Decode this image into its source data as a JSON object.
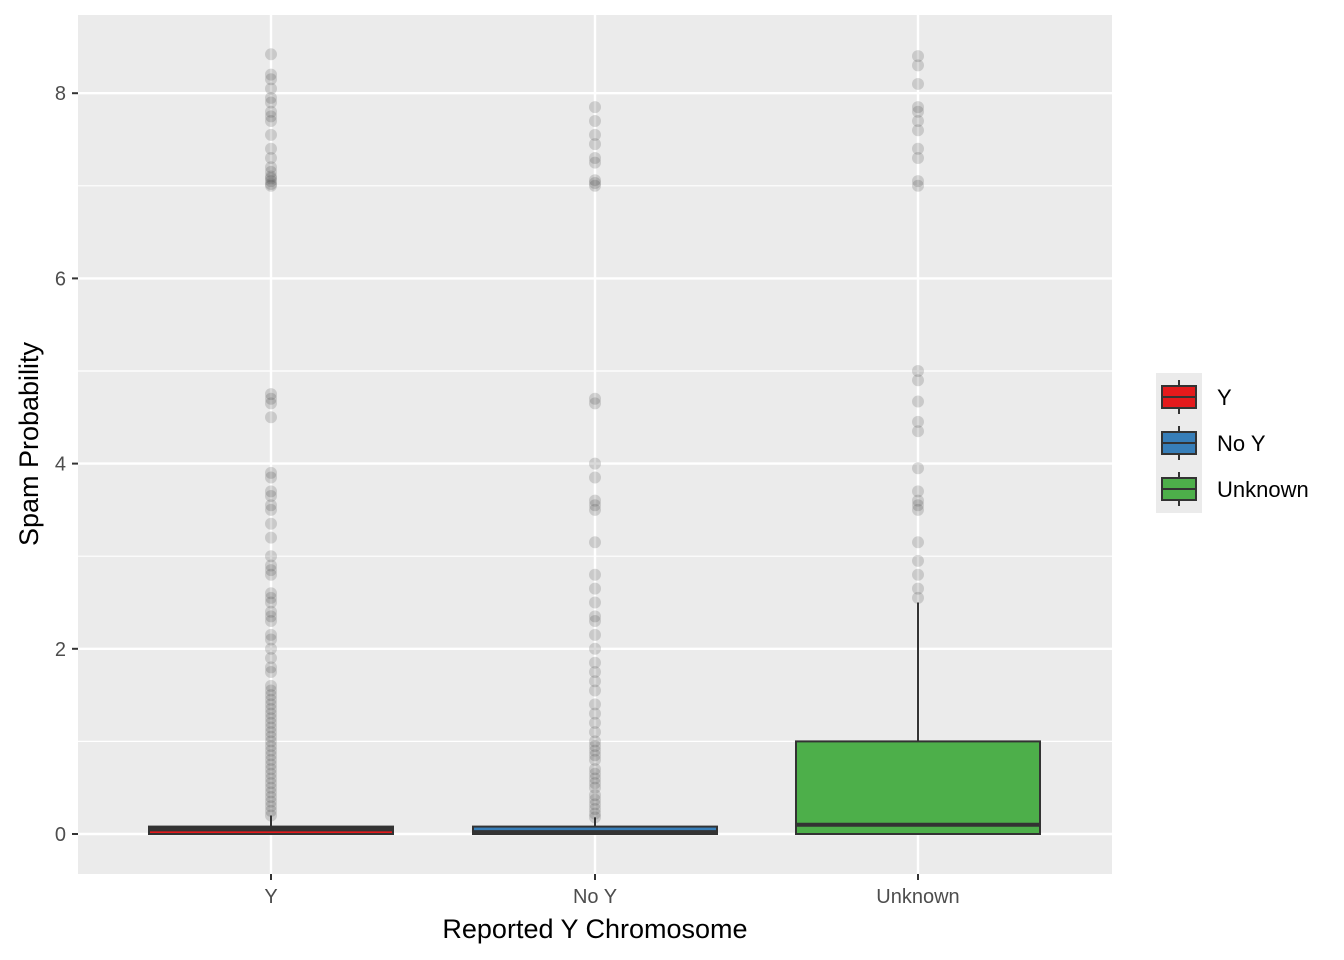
{
  "chart_data": {
    "type": "boxplot",
    "xlabel": "Reported Y Chromosome",
    "ylabel": "Spam Probability",
    "ylim": [
      -0.42,
      8.8
    ],
    "yticks": [
      0,
      2,
      4,
      6,
      8
    ],
    "minor_grid": [
      1,
      3,
      5,
      7
    ],
    "grid": true,
    "legend_position": "right",
    "categories": [
      "Y",
      "No Y",
      "Unknown"
    ],
    "series": [
      {
        "name": "Y",
        "color": "#e41a1c",
        "q1": 0.0,
        "median": 0.05,
        "q3": 0.08,
        "whisker_low": 0.0,
        "whisker_high": 0.2,
        "outliers": [
          0.2,
          0.25,
          0.3,
          0.35,
          0.4,
          0.45,
          0.5,
          0.55,
          0.6,
          0.65,
          0.7,
          0.75,
          0.8,
          0.85,
          0.9,
          0.95,
          1.0,
          1.05,
          1.1,
          1.15,
          1.2,
          1.25,
          1.3,
          1.35,
          1.4,
          1.45,
          1.5,
          1.55,
          1.6,
          1.75,
          1.8,
          1.9,
          2.0,
          2.1,
          2.15,
          2.3,
          2.35,
          2.4,
          2.5,
          2.55,
          2.6,
          2.8,
          2.85,
          2.9,
          3.0,
          3.2,
          3.35,
          3.5,
          3.55,
          3.65,
          3.7,
          3.85,
          3.9,
          4.5,
          4.65,
          4.7,
          4.75,
          7.0,
          7.02,
          7.05,
          7.08,
          7.1,
          7.15,
          7.2,
          7.3,
          7.4,
          7.55,
          7.7,
          7.75,
          7.8,
          7.9,
          7.95,
          8.05,
          8.15,
          8.2,
          8.42
        ]
      },
      {
        "name": "No Y",
        "color": "#377eb8",
        "q1": 0.0,
        "median": 0.02,
        "q3": 0.08,
        "whisker_low": 0.0,
        "whisker_high": 0.18,
        "outliers": [
          0.18,
          0.22,
          0.27,
          0.32,
          0.37,
          0.42,
          0.5,
          0.55,
          0.6,
          0.65,
          0.7,
          0.8,
          0.85,
          0.9,
          0.95,
          1.0,
          1.1,
          1.2,
          1.3,
          1.4,
          1.55,
          1.65,
          1.75,
          1.85,
          2.0,
          2.15,
          2.3,
          2.35,
          2.5,
          2.65,
          2.8,
          3.15,
          3.5,
          3.55,
          3.6,
          3.85,
          4.0,
          4.65,
          4.7,
          7.0,
          7.03,
          7.06,
          7.25,
          7.3,
          7.45,
          7.55,
          7.7,
          7.85
        ]
      },
      {
        "name": "Unknown",
        "color": "#4daf4a",
        "q1": 0.0,
        "median": 0.1,
        "q3": 1.0,
        "whisker_low": 0.0,
        "whisker_high": 2.5,
        "outliers": [
          2.55,
          2.65,
          2.8,
          2.95,
          3.15,
          3.5,
          3.55,
          3.6,
          3.7,
          3.95,
          4.35,
          4.45,
          4.67,
          4.9,
          5.0,
          7.0,
          7.05,
          7.3,
          7.4,
          7.6,
          7.7,
          7.8,
          7.85,
          8.1,
          8.3,
          8.4
        ]
      }
    ]
  }
}
